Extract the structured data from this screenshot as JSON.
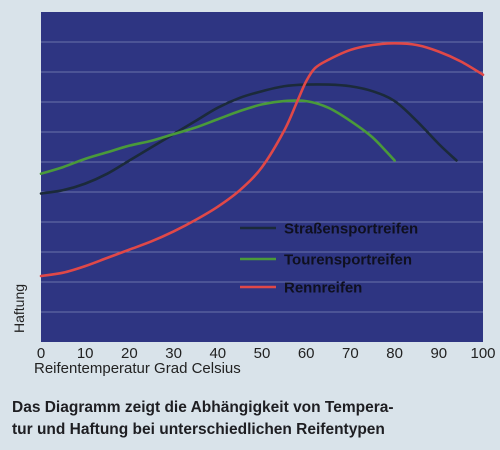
{
  "chart_data": {
    "type": "line",
    "xlabel": "Reifentemperatur Grad Celsius",
    "ylabel": "Haftung",
    "xlim": [
      0,
      100
    ],
    "x_ticks": [
      0,
      10,
      20,
      30,
      40,
      50,
      60,
      70,
      80,
      90,
      100
    ],
    "grid": true,
    "legend_position": "right-center",
    "series": [
      {
        "name": "Straßensportreifen",
        "color": "#1b2a3a",
        "x": [
          0,
          5,
          10,
          15,
          20,
          25,
          30,
          35,
          40,
          45,
          50,
          55,
          60,
          65,
          70,
          75,
          80,
          85,
          90,
          94
        ],
        "y": [
          45,
          46,
          48,
          51,
          55,
          59,
          63,
          67,
          71,
          74,
          76,
          77.5,
          78,
          78,
          77.5,
          76,
          73,
          67,
          60,
          55
        ]
      },
      {
        "name": "Tourensportreifen",
        "color": "#4a9a3a",
        "x": [
          0,
          5,
          10,
          15,
          20,
          25,
          30,
          35,
          40,
          45,
          50,
          55,
          60,
          65,
          70,
          75,
          80
        ],
        "y": [
          51,
          53,
          55.5,
          57.5,
          59.5,
          61,
          63,
          65,
          67.5,
          70,
          72,
          73,
          73,
          71,
          67,
          62,
          55
        ]
      },
      {
        "name": "Rennreifen",
        "color": "#e04848",
        "x": [
          0,
          5,
          10,
          15,
          20,
          25,
          30,
          35,
          40,
          45,
          50,
          55,
          58,
          60,
          62,
          65,
          70,
          75,
          80,
          85,
          90,
          95,
          100
        ],
        "y": [
          20,
          21,
          23,
          25.5,
          28,
          30.5,
          33.5,
          37,
          41,
          46,
          53,
          64,
          73,
          79,
          83,
          85.5,
          88.5,
          90,
          90.5,
          90,
          88,
          85,
          81
        ]
      }
    ]
  },
  "caption": {
    "line1": "Das Diagramm zeigt die Abhängigkeit von Tempera-",
    "line2": "tur und Haftung bei unterschiedlichen Reifentypen"
  }
}
